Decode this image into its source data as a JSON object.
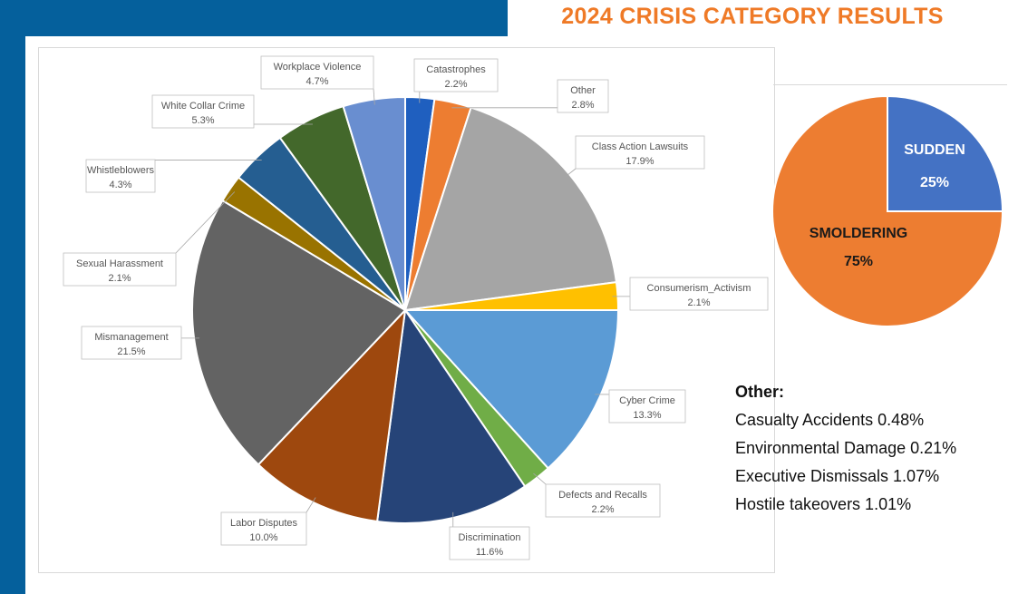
{
  "title": "2024 CRISIS CATEGORY RESULTS",
  "chart_data": [
    {
      "type": "pie",
      "title": "",
      "categories": [
        "Catastrophes",
        "Other",
        "Class Action Lawsuits",
        "Consumerism_Activism",
        "Cyber Crime",
        "Defects and Recalls",
        "Discrimination",
        "Labor Disputes",
        "Mismanagement",
        "Sexual Harassment",
        "Whistleblowers",
        "White Collar Crime",
        "Workplace Violence"
      ],
      "values": [
        2.2,
        2.8,
        17.9,
        2.1,
        13.3,
        2.2,
        11.6,
        10.0,
        21.5,
        2.1,
        4.3,
        5.3,
        4.7
      ],
      "labels": [
        "2.2%",
        "2.8%",
        "17.9%",
        "2.1%",
        "13.3%",
        "2.2%",
        "11.6%",
        "10.0%",
        "21.5%",
        "2.1%",
        "4.3%",
        "5.3%",
        "4.7%"
      ],
      "colors": [
        "#1f5fbf",
        "#ed7d31",
        "#a5a5a5",
        "#ffc000",
        "#5b9bd5",
        "#70ad47",
        "#264478",
        "#9e480e",
        "#636363",
        "#997300",
        "#255e91",
        "#43682b",
        "#698ed0"
      ]
    },
    {
      "type": "pie",
      "title": "",
      "categories": [
        "SUDDEN",
        "SMOLDERING"
      ],
      "values": [
        25,
        75
      ],
      "labels": [
        "25%",
        "75%"
      ],
      "colors": [
        "#4472c4",
        "#ed7d31"
      ]
    }
  ],
  "other": {
    "title": "Other:",
    "items": [
      "Casualty Accidents 0.48%",
      "Environmental Damage 0.21%",
      "Executive Dismissals 1.07%",
      "Hostile takeovers 1.01%"
    ]
  }
}
